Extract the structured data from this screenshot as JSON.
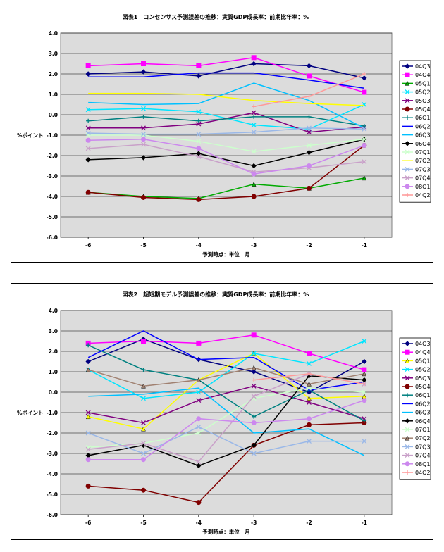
{
  "chart_data": [
    {
      "type": "line",
      "title": "図表1　コンセンサス予測誤差の推移：実質GDP成長率：前期比年率：%",
      "xlabel": "予測時点：単位　月",
      "ylabel": "%ポイント",
      "x": [
        -6,
        -5,
        -4,
        -3,
        -2,
        -1
      ],
      "ylim": [
        -6,
        4
      ],
      "yticks": [
        4,
        3,
        2,
        1,
        0,
        -1,
        -2,
        -3,
        -4,
        -5,
        -6
      ],
      "ytick_labels": [
        "4.0",
        "3.0",
        "2.0",
        "1.0",
        "0.0",
        "-1.0",
        "-2.0",
        "-3.0",
        "-4.0",
        "-5.0",
        "-6.0"
      ],
      "grid": true,
      "legend": "right",
      "series": [
        {
          "name": "04Q3",
          "color": "#000080",
          "marker": "diamond",
          "values": [
            2.0,
            2.1,
            1.9,
            2.5,
            2.4,
            1.8
          ]
        },
        {
          "name": "04Q4",
          "color": "#ff00ff",
          "marker": "square",
          "values": [
            2.4,
            2.5,
            2.4,
            2.8,
            1.9,
            1.1
          ]
        },
        {
          "name": "05Q1",
          "color": "#00aa00",
          "marker": "triangle",
          "values": [
            -3.8,
            -4.0,
            -4.1,
            -3.4,
            -3.6,
            -3.1
          ]
        },
        {
          "name": "05Q2",
          "color": "#00e5ff",
          "marker": "x",
          "values": [
            0.25,
            0.3,
            0.15,
            -0.5,
            -0.7,
            0.5
          ]
        },
        {
          "name": "05Q3",
          "color": "#800080",
          "marker": "x",
          "values": [
            -0.65,
            -0.65,
            -0.45,
            0.1,
            -0.85,
            -0.6
          ]
        },
        {
          "name": "05Q4",
          "color": "#800000",
          "marker": "circle",
          "values": [
            -3.8,
            -4.05,
            -4.15,
            -4.0,
            -3.6,
            -1.5
          ]
        },
        {
          "name": "06Q1",
          "color": "#008080",
          "marker": "plus",
          "values": [
            -0.3,
            -0.1,
            -0.3,
            -0.1,
            -0.1,
            -0.55
          ]
        },
        {
          "name": "06Q2",
          "color": "#0000ff",
          "marker": "none",
          "values": [
            1.85,
            1.85,
            2.05,
            2.05,
            1.7,
            1.3
          ]
        },
        {
          "name": "06Q3",
          "color": "#00c0ff",
          "marker": "none",
          "values": [
            0.6,
            0.5,
            0.55,
            1.55,
            0.7,
            -0.65
          ]
        },
        {
          "name": "06Q4",
          "color": "#000000",
          "marker": "diamond",
          "values": [
            -2.2,
            -2.1,
            -1.9,
            -2.5,
            -1.85,
            -1.2
          ]
        },
        {
          "name": "07Q1",
          "color": "#ccffcc",
          "marker": "x",
          "values": [
            -1.0,
            -1.0,
            -1.3,
            -1.8,
            -1.5,
            -1.2
          ]
        },
        {
          "name": "07Q2",
          "color": "#ffff00",
          "marker": "none",
          "values": [
            1.05,
            1.05,
            1.0,
            0.7,
            0.55,
            0.45
          ]
        },
        {
          "name": "07Q3",
          "color": "#9ab8e8",
          "marker": "x",
          "values": [
            -0.9,
            -0.95,
            -0.95,
            -0.85,
            -0.65,
            -0.7
          ]
        },
        {
          "name": "07Q4",
          "color": "#c9a0c9",
          "marker": "x",
          "values": [
            -1.65,
            -1.45,
            -2.05,
            -2.8,
            -2.6,
            -2.3
          ]
        },
        {
          "name": "08Q1",
          "color": "#cc88ee",
          "marker": "circle",
          "values": [
            -1.25,
            -1.2,
            -1.65,
            -2.9,
            -2.5,
            -1.5
          ]
        },
        {
          "name": "04Q2",
          "color": "#ff9999",
          "marker": "plus",
          "values": [
            null,
            null,
            null,
            0.4,
            0.9,
            2.0
          ]
        }
      ]
    },
    {
      "type": "line",
      "title": "図表2　超短期モデル予測誤差の推移：実質GDP成長率：前期比年率：%",
      "xlabel": "予測時点：単位　月",
      "ylabel": "%ポイント",
      "x": [
        -6,
        -5,
        -4,
        -3,
        -2,
        -1
      ],
      "ylim": [
        -6,
        4
      ],
      "yticks": [
        4,
        3,
        2,
        1,
        0,
        -1,
        -2,
        -3,
        -4,
        -5,
        -6
      ],
      "ytick_labels": [
        "4.0",
        "3.0",
        "2.0",
        "1.0",
        "0.0",
        "-1.0",
        "-2.0",
        "-3.0",
        "-4.0",
        "-5.0",
        "-6.0"
      ],
      "grid": true,
      "legend": "right",
      "series": [
        {
          "name": "04Q3",
          "color": "#000080",
          "marker": "diamond",
          "values": [
            1.5,
            2.6,
            1.6,
            1.0,
            0.0,
            1.5
          ]
        },
        {
          "name": "04Q4",
          "color": "#ff00ff",
          "marker": "square",
          "values": [
            2.4,
            2.5,
            2.4,
            2.8,
            1.9,
            1.1
          ]
        },
        {
          "name": "05Q1",
          "color": "#ffff00",
          "marker": "triangle",
          "values": [
            -1.2,
            -1.8,
            0.6,
            1.9,
            -0.3,
            -0.2
          ]
        },
        {
          "name": "05Q2",
          "color": "#00e5ff",
          "marker": "x",
          "values": [
            1.1,
            -0.3,
            0.0,
            1.9,
            1.4,
            2.5
          ]
        },
        {
          "name": "05Q3",
          "color": "#800080",
          "marker": "x",
          "values": [
            -1.0,
            -1.5,
            -0.4,
            0.3,
            -0.5,
            -1.3
          ]
        },
        {
          "name": "05Q4",
          "color": "#800000",
          "marker": "circle",
          "values": [
            -4.6,
            -4.8,
            -5.4,
            -2.6,
            -1.6,
            -1.5
          ]
        },
        {
          "name": "06Q1",
          "color": "#008080",
          "marker": "plus",
          "values": [
            2.3,
            1.1,
            0.6,
            -1.2,
            0.1,
            -1.4
          ]
        },
        {
          "name": "06Q2",
          "color": "#0000ff",
          "marker": "none",
          "values": [
            1.7,
            3.0,
            1.6,
            1.7,
            0.1,
            0.5
          ]
        },
        {
          "name": "06Q3",
          "color": "#00c0ff",
          "marker": "none",
          "values": [
            -0.2,
            -0.1,
            0.2,
            -2.0,
            -1.8,
            -3.1
          ]
        },
        {
          "name": "06Q4",
          "color": "#000000",
          "marker": "diamond",
          "values": [
            -3.1,
            -2.6,
            -3.6,
            -2.6,
            0.8,
            0.6
          ]
        },
        {
          "name": "07Q1",
          "color": "#ccffcc",
          "marker": "x",
          "values": [
            -2.7,
            -2.5,
            -2.0,
            -0.3,
            0.2,
            0.0
          ]
        },
        {
          "name": "07Q2",
          "color": "#a08070",
          "marker": "triangle",
          "values": [
            1.1,
            0.3,
            0.6,
            1.2,
            0.4,
            0.9
          ]
        },
        {
          "name": "07Q3",
          "color": "#9ab8e8",
          "marker": "x",
          "values": [
            -2.0,
            -3.0,
            -1.7,
            -3.0,
            -2.4,
            -2.4
          ]
        },
        {
          "name": "07Q4",
          "color": "#c9a0c9",
          "marker": "x",
          "values": [
            -2.8,
            -2.5,
            -3.4,
            -0.2,
            0.9,
            0.4
          ]
        },
        {
          "name": "08Q1",
          "color": "#cc88ee",
          "marker": "circle",
          "values": [
            -3.3,
            -3.3,
            -1.3,
            -1.5,
            -1.3,
            -0.4
          ]
        },
        {
          "name": "04Q2",
          "color": "#ff9999",
          "marker": "plus",
          "values": [
            null,
            null,
            null,
            0.6,
            0.9,
            0.4
          ]
        }
      ]
    }
  ]
}
